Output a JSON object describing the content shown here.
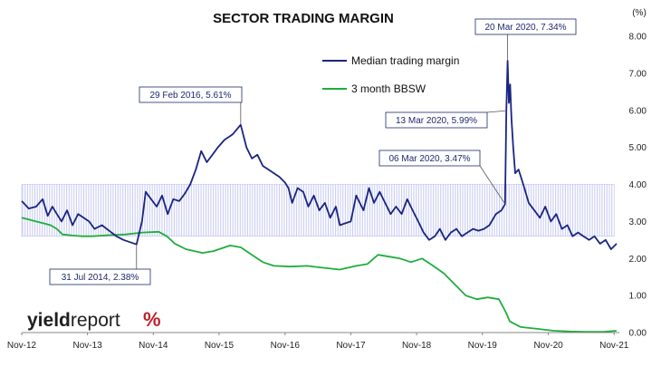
{
  "chart_data": {
    "type": "line",
    "title": "SECTOR TRADING MARGIN",
    "y_unit": "(%)",
    "ylim": [
      0,
      8
    ],
    "y_ticks": [
      "0.00",
      "1.00",
      "2.00",
      "3.00",
      "4.00",
      "5.00",
      "6.00",
      "7.00",
      "8.00"
    ],
    "x_ticks": [
      "Nov-12",
      "Nov-13",
      "Nov-14",
      "Nov-15",
      "Nov-16",
      "Nov-17",
      "Nov-18",
      "Nov-19",
      "Nov-20",
      "Nov-21"
    ],
    "x_range": [
      "2012-11-01",
      "2021-11-30"
    ],
    "band": {
      "from": 2.6,
      "to": 4.0,
      "x_start": "2012-11-01",
      "x_end": "2021-11-01",
      "color": "#c9cdf2"
    },
    "grid": false,
    "legend_position": "top-center",
    "series": [
      {
        "name": "Median trading margin",
        "color": "#1a2580",
        "points": [
          [
            "2012-11-01",
            3.55
          ],
          [
            "2012-12-10",
            3.35
          ],
          [
            "2013-01-20",
            3.4
          ],
          [
            "2013-02-25",
            3.6
          ],
          [
            "2013-03-25",
            3.15
          ],
          [
            "2013-04-20",
            3.4
          ],
          [
            "2013-05-15",
            3.2
          ],
          [
            "2013-06-10",
            3.0
          ],
          [
            "2013-07-10",
            3.3
          ],
          [
            "2013-08-10",
            2.9
          ],
          [
            "2013-09-10",
            3.2
          ],
          [
            "2013-10-10",
            3.1
          ],
          [
            "2013-11-10",
            3.0
          ],
          [
            "2013-12-10",
            2.8
          ],
          [
            "2014-01-20",
            2.9
          ],
          [
            "2014-03-01",
            2.75
          ],
          [
            "2014-04-10",
            2.6
          ],
          [
            "2014-05-20",
            2.5
          ],
          [
            "2014-07-31",
            2.38
          ],
          [
            "2014-08-30",
            3.0
          ],
          [
            "2014-09-20",
            3.8
          ],
          [
            "2014-10-20",
            3.6
          ],
          [
            "2014-11-20",
            3.4
          ],
          [
            "2014-12-20",
            3.7
          ],
          [
            "2015-01-20",
            3.2
          ],
          [
            "2015-02-20",
            3.6
          ],
          [
            "2015-03-25",
            3.55
          ],
          [
            "2015-04-25",
            3.75
          ],
          [
            "2015-05-25",
            4.0
          ],
          [
            "2015-06-25",
            4.4
          ],
          [
            "2015-07-25",
            4.9
          ],
          [
            "2015-08-25",
            4.6
          ],
          [
            "2015-09-25",
            4.8
          ],
          [
            "2015-10-25",
            5.0
          ],
          [
            "2015-12-01",
            5.2
          ],
          [
            "2016-01-15",
            5.35
          ],
          [
            "2016-02-29",
            5.61
          ],
          [
            "2016-04-01",
            5.0
          ],
          [
            "2016-05-01",
            4.7
          ],
          [
            "2016-06-01",
            4.8
          ],
          [
            "2016-07-01",
            4.5
          ],
          [
            "2016-08-01",
            4.4
          ],
          [
            "2016-09-01",
            4.3
          ],
          [
            "2016-10-01",
            4.2
          ],
          [
            "2016-11-01",
            4.05
          ],
          [
            "2016-11-20",
            3.9
          ],
          [
            "2016-12-10",
            3.5
          ],
          [
            "2017-01-10",
            3.9
          ],
          [
            "2017-02-10",
            3.8
          ],
          [
            "2017-03-10",
            3.4
          ],
          [
            "2017-04-10",
            3.7
          ],
          [
            "2017-05-10",
            3.3
          ],
          [
            "2017-06-10",
            3.5
          ],
          [
            "2017-07-10",
            3.1
          ],
          [
            "2017-08-10",
            3.4
          ],
          [
            "2017-09-01",
            2.9
          ],
          [
            "2017-10-01",
            2.95
          ],
          [
            "2017-11-01",
            3.0
          ],
          [
            "2017-12-01",
            3.7
          ],
          [
            "2018-01-10",
            3.3
          ],
          [
            "2018-02-10",
            3.9
          ],
          [
            "2018-03-10",
            3.5
          ],
          [
            "2018-04-10",
            3.8
          ],
          [
            "2018-05-10",
            3.5
          ],
          [
            "2018-06-10",
            3.2
          ],
          [
            "2018-07-10",
            3.4
          ],
          [
            "2018-08-10",
            3.2
          ],
          [
            "2018-09-10",
            3.6
          ],
          [
            "2018-10-10",
            3.3
          ],
          [
            "2018-11-10",
            3.0
          ],
          [
            "2018-12-10",
            2.7
          ],
          [
            "2019-01-10",
            2.5
          ],
          [
            "2019-02-10",
            2.6
          ],
          [
            "2019-03-10",
            2.8
          ],
          [
            "2019-04-10",
            2.5
          ],
          [
            "2019-05-10",
            2.7
          ],
          [
            "2019-06-10",
            2.8
          ],
          [
            "2019-07-10",
            2.6
          ],
          [
            "2019-08-10",
            2.7
          ],
          [
            "2019-09-10",
            2.8
          ],
          [
            "2019-10-10",
            2.75
          ],
          [
            "2019-11-10",
            2.8
          ],
          [
            "2019-12-10",
            2.9
          ],
          [
            "2020-01-15",
            3.2
          ],
          [
            "2020-02-15",
            3.3
          ],
          [
            "2020-03-06",
            3.47
          ],
          [
            "2020-03-13",
            5.99
          ],
          [
            "2020-03-20",
            7.34
          ],
          [
            "2020-03-27",
            6.2
          ],
          [
            "2020-04-03",
            6.7
          ],
          [
            "2020-04-10",
            5.8
          ],
          [
            "2020-04-20",
            5.0
          ],
          [
            "2020-05-01",
            4.3
          ],
          [
            "2020-05-20",
            4.4
          ],
          [
            "2020-06-15",
            4.0
          ],
          [
            "2020-07-15",
            3.5
          ],
          [
            "2020-08-15",
            3.3
          ],
          [
            "2020-09-15",
            3.1
          ],
          [
            "2020-10-15",
            3.4
          ],
          [
            "2020-11-15",
            3.0
          ],
          [
            "2020-12-15",
            3.2
          ],
          [
            "2021-01-15",
            2.8
          ],
          [
            "2021-02-15",
            2.9
          ],
          [
            "2021-03-15",
            2.6
          ],
          [
            "2021-04-15",
            2.7
          ],
          [
            "2021-05-15",
            2.6
          ],
          [
            "2021-06-15",
            2.5
          ],
          [
            "2021-07-15",
            2.6
          ],
          [
            "2021-08-15",
            2.4
          ],
          [
            "2021-09-15",
            2.5
          ],
          [
            "2021-10-15",
            2.25
          ],
          [
            "2021-11-15",
            2.4
          ]
        ]
      },
      {
        "name": "3 month BBSW",
        "color": "#1fae3d",
        "points": [
          [
            "2012-11-01",
            3.1
          ],
          [
            "2012-12-10",
            3.05
          ],
          [
            "2013-01-20",
            3.0
          ],
          [
            "2013-03-01",
            2.95
          ],
          [
            "2013-04-10",
            2.9
          ],
          [
            "2013-05-15",
            2.8
          ],
          [
            "2013-06-15",
            2.65
          ],
          [
            "2013-08-10",
            2.62
          ],
          [
            "2013-10-01",
            2.6
          ],
          [
            "2013-12-01",
            2.6
          ],
          [
            "2014-03-01",
            2.63
          ],
          [
            "2014-06-01",
            2.65
          ],
          [
            "2014-09-01",
            2.7
          ],
          [
            "2014-12-01",
            2.72
          ],
          [
            "2015-01-15",
            2.6
          ],
          [
            "2015-03-01",
            2.4
          ],
          [
            "2015-05-01",
            2.25
          ],
          [
            "2015-08-01",
            2.15
          ],
          [
            "2015-10-01",
            2.2
          ],
          [
            "2016-01-01",
            2.35
          ],
          [
            "2016-03-01",
            2.3
          ],
          [
            "2016-05-01",
            2.1
          ],
          [
            "2016-07-01",
            1.9
          ],
          [
            "2016-09-01",
            1.8
          ],
          [
            "2016-12-01",
            1.78
          ],
          [
            "2017-03-01",
            1.8
          ],
          [
            "2017-06-01",
            1.75
          ],
          [
            "2017-09-01",
            1.7
          ],
          [
            "2017-12-01",
            1.8
          ],
          [
            "2018-02-01",
            1.85
          ],
          [
            "2018-04-01",
            2.1
          ],
          [
            "2018-06-01",
            2.05
          ],
          [
            "2018-08-01",
            2.0
          ],
          [
            "2018-10-01",
            1.9
          ],
          [
            "2018-12-01",
            2.0
          ],
          [
            "2019-02-01",
            1.8
          ],
          [
            "2019-04-01",
            1.6
          ],
          [
            "2019-06-01",
            1.3
          ],
          [
            "2019-08-01",
            1.0
          ],
          [
            "2019-10-01",
            0.9
          ],
          [
            "2019-12-01",
            0.95
          ],
          [
            "2020-02-01",
            0.9
          ],
          [
            "2020-03-10",
            0.55
          ],
          [
            "2020-04-01",
            0.3
          ],
          [
            "2020-06-01",
            0.15
          ],
          [
            "2020-09-01",
            0.1
          ],
          [
            "2020-12-01",
            0.05
          ],
          [
            "2021-03-01",
            0.03
          ],
          [
            "2021-06-01",
            0.02
          ],
          [
            "2021-09-01",
            0.02
          ],
          [
            "2021-11-15",
            0.05
          ]
        ]
      }
    ],
    "annotations": [
      {
        "label": "29 Feb 2016,  5.61%",
        "x": "2016-02-29",
        "y": 5.61
      },
      {
        "label": "31 Jul 2014,  2.38%",
        "x": "2014-07-31",
        "y": 2.38
      },
      {
        "label": "20 Mar 2020,  7.34%",
        "x": "2020-03-20",
        "y": 7.34
      },
      {
        "label": "13 Mar 2020,  5.99%",
        "x": "2020-03-13",
        "y": 5.99
      },
      {
        "label": "06 Mar 2020,  3.47%",
        "x": "2020-03-06",
        "y": 3.47
      }
    ]
  },
  "branding": {
    "text_bold": "yield",
    "text_light": "report",
    "symbol": "%"
  }
}
